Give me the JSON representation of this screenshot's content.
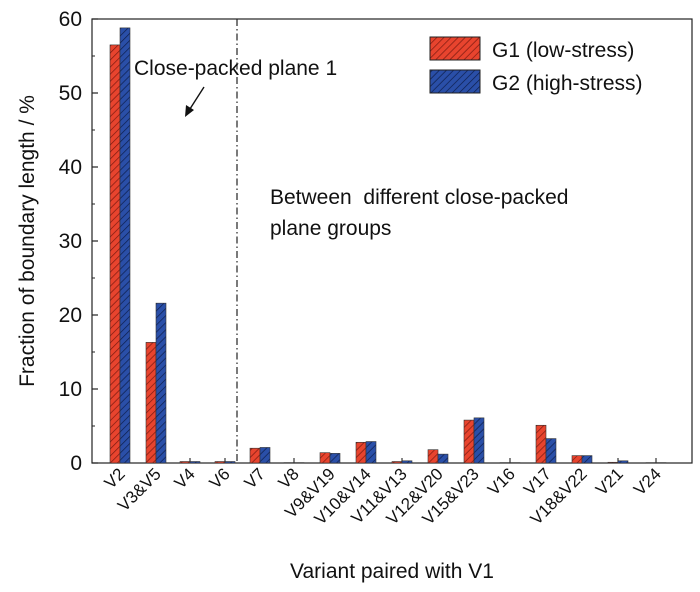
{
  "chart_data": {
    "type": "bar",
    "title": "",
    "xlabel": "Variant paired with V1",
    "ylabel": "Fraction of boundary length / %",
    "ylim": [
      0,
      60
    ],
    "yticks": [
      0,
      10,
      20,
      30,
      40,
      50,
      60
    ],
    "grid": false,
    "legend_position": "top-right",
    "categories": [
      "V2",
      "V3&V5",
      "V4",
      "V6",
      "V7",
      "V8",
      "V9&V19",
      "V10&V14",
      "V11&V13",
      "V12&V20",
      "V15&V23",
      "V16",
      "V17",
      "V18&V22",
      "V21",
      "V24"
    ],
    "series": [
      {
        "name": "G1 (low-stress)",
        "color": "#e8442e",
        "hatch": "diagonal",
        "values": [
          56.5,
          16.3,
          0.2,
          0.2,
          2.0,
          0.05,
          1.4,
          2.8,
          0.2,
          1.8,
          5.8,
          0.05,
          5.1,
          1.0,
          0.1,
          0.05
        ]
      },
      {
        "name": "G2 (high-stress)",
        "color": "#2a4fa8",
        "hatch": "diagonal",
        "values": [
          58.8,
          21.6,
          0.2,
          0.2,
          2.1,
          0.05,
          1.3,
          2.9,
          0.3,
          1.2,
          6.1,
          0.05,
          3.3,
          1.0,
          0.3,
          0.05
        ]
      }
    ],
    "annotations": [
      {
        "id": "close-packed",
        "text": "Close-packed plane 1"
      },
      {
        "id": "between",
        "lines": [
          "Between  different close-packed",
          "plane groups"
        ]
      }
    ]
  }
}
